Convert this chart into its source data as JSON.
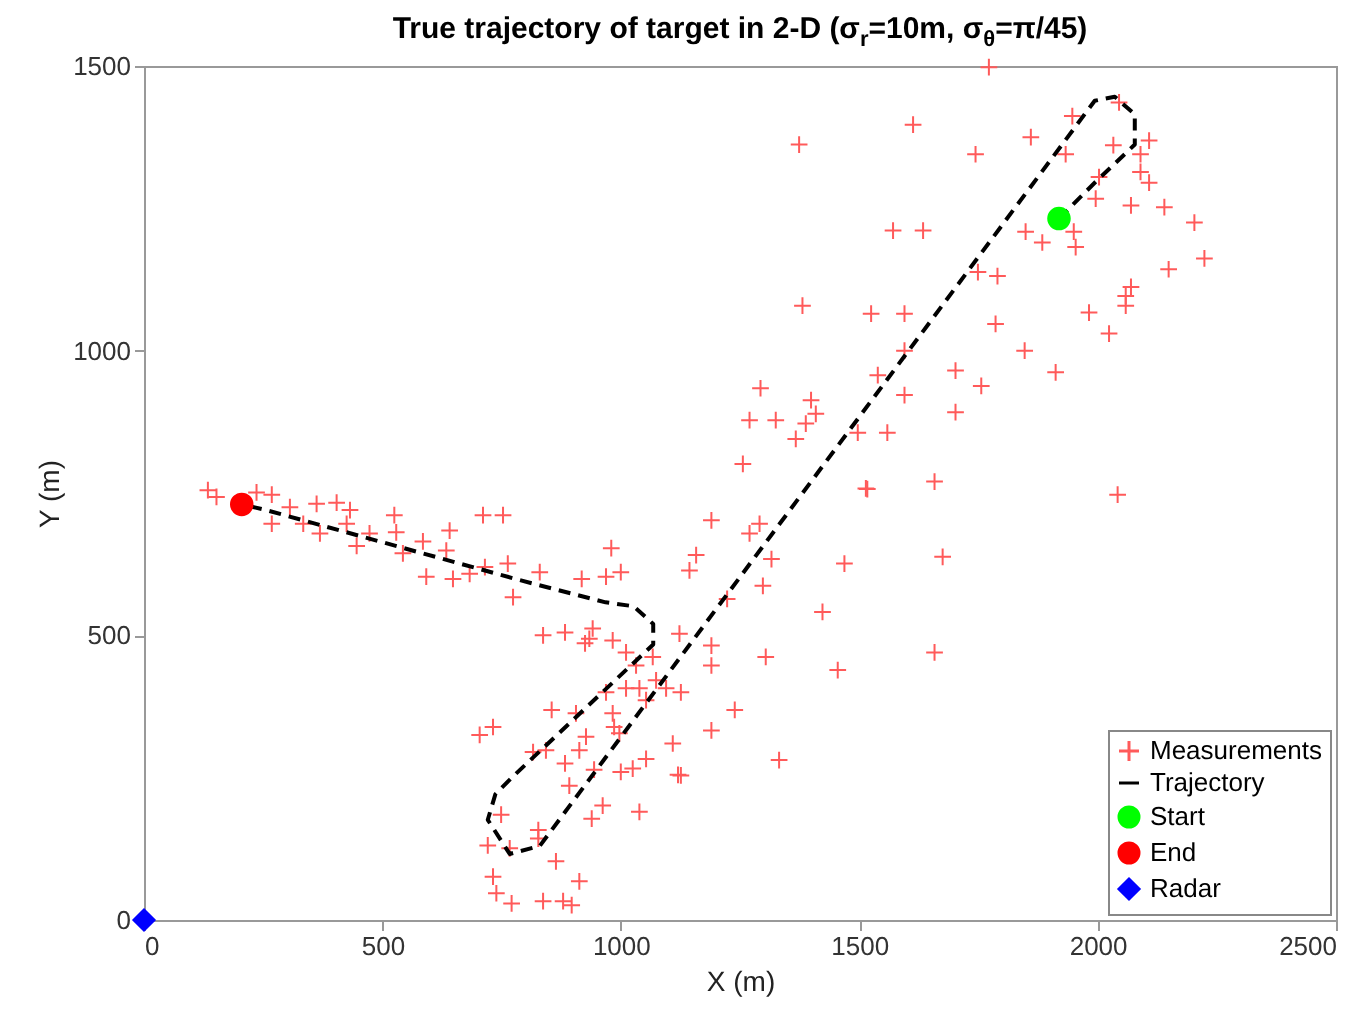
{
  "chart_data": {
    "type": "scatter",
    "title": "True trajectory of target in 2-D (σ$_{r}$=10m, σ$_{θ}$=π/45)",
    "xlabel": "X (m)",
    "ylabel": "Y (m)",
    "xlim": [
      0,
      2500
    ],
    "xticks": [
      0,
      500,
      1000,
      1500,
      2000,
      2500
    ],
    "ylim": [
      0,
      1500
    ],
    "yticks": [
      0,
      500,
      1000,
      1500
    ],
    "grid": false,
    "legend": "bottom right",
    "series": [
      {
        "name": "Measurements",
        "type": "scatter",
        "marker": "cross",
        "color": "#ff5a5a",
        "x": [
          134,
          152,
          236,
          268,
          268,
          306,
          334,
          362,
          369,
          404,
          432,
          425,
          446,
          473,
          525,
          529,
          543,
          585,
          592,
          634,
          641,
          648,
          683,
          711,
          753,
          715,
          763,
          774,
          830,
          918,
          969,
          980,
          1000,
          1190,
          1158,
          1144,
          837,
          883,
          941,
          934,
          925,
          983,
          1011,
          1067,
          1123,
          1190,
          1190,
          1032,
          1074,
          1039,
          1011,
          969,
          1095,
          1126,
          1053,
          983,
          906,
          855,
          997,
          986,
          927,
          913,
          883,
          843,
          816,
          704,
          732,
          1109,
          1053,
          1126,
          1025,
          1000,
          944,
          892,
          962,
          939,
          1039,
          749,
          721,
          767,
          827,
          827,
          864,
          913,
          732,
          739,
          771,
          837,
          879,
          897,
          1190,
          1291,
          1270,
          1316,
          1298,
          1223,
          1423,
          1304,
          1455,
          1239,
          1332,
          1120,
          1514,
          1469,
          1381,
          1525,
          1595,
          1786,
          1847,
          1982,
          2059,
          2024,
          1912,
          1595,
          1702,
          1756,
          1539,
          1595,
          1702,
          1293,
          1399,
          1409,
          1388,
          1367,
          1270,
          1325,
          1497,
          1559,
          1256,
          1517,
          1658,
          2042,
          1675,
          1658,
          1772,
          1860,
          1744,
          1947,
          2045,
          1933,
          2033,
          2108,
          2090,
          2090,
          2108,
          2003,
          1996,
          2070,
          2140,
          2203,
          2224,
          2149,
          1950,
          1954,
          1849,
          1884,
          1749,
          1790,
          2070,
          2059,
          1374,
          1613,
          1571,
          1634
        ],
        "values": [
          755,
          743,
          751,
          747,
          696,
          725,
          696,
          731,
          679,
          733,
          720,
          696,
          657,
          679,
          711,
          681,
          644,
          665,
          603,
          649,
          684,
          599,
          608,
          711,
          711,
          620,
          626,
          567,
          611,
          599,
          603,
          653,
          611,
          702,
          641,
          614,
          500,
          505,
          512,
          494,
          486,
          491,
          470,
          462,
          503,
          482,
          447,
          447,
          421,
          407,
          407,
          400,
          407,
          400,
          386,
          363,
          363,
          369,
          328,
          339,
          322,
          298,
          275,
          298,
          295,
          325,
          339,
          310,
          283,
          254,
          266,
          260,
          264,
          236,
          201,
          178,
          190,
          185,
          131,
          126,
          158,
          143,
          103,
          68,
          76,
          47,
          29,
          33,
          33,
          26,
          333,
          696,
          679,
          634,
          587,
          564,
          541,
          462,
          439,
          369,
          281,
          255,
          758,
          626,
          1079,
          1065,
          1065,
          1047,
          1000,
          1067,
          1079,
          1030,
          962,
          1000,
          965,
          938,
          957,
          922,
          892,
          934,
          913,
          889,
          872,
          845,
          878,
          878,
          856,
          856,
          801,
          757,
          770,
          747,
          638,
          470,
          1498,
          1375,
          1345,
          1412,
          1436,
          1345,
          1361,
          1369,
          1345,
          1314,
          1295,
          1305,
          1267,
          1255,
          1252,
          1225,
          1162,
          1143,
          1209,
          1182,
          1209,
          1190,
          1138,
          1131,
          1112,
          1096,
          1362,
          1397,
          1211,
          1211
        ]
      },
      {
        "name": "Trajectory",
        "type": "line",
        "marker": "none",
        "line_style": "dashed",
        "color": "#000000",
        "x": [
          1919,
          2000,
          2078,
          2078,
          2036,
          1994,
          830,
          767,
          721,
          737,
          775,
          1068,
          1068,
          1027,
          968,
          788,
          256,
          205
        ],
        "values": [
          1232,
          1300,
          1362,
          1415,
          1446,
          1439,
          130,
          116,
          176,
          221,
          253,
          484,
          520,
          551,
          558,
          597,
          720,
          730
        ]
      },
      {
        "name": "Start",
        "type": "scatter",
        "marker": "circle",
        "color": "#00ff00",
        "x": [
          1919
        ],
        "values": [
          1232
        ]
      },
      {
        "name": "End",
        "type": "scatter",
        "marker": "circle",
        "color": "#ff0000",
        "x": [
          205
        ],
        "values": [
          730
        ]
      },
      {
        "name": "Radar",
        "type": "scatter",
        "marker": "diamond",
        "color": "#0000ff",
        "x": [
          0
        ],
        "values": [
          0
        ]
      }
    ]
  }
}
